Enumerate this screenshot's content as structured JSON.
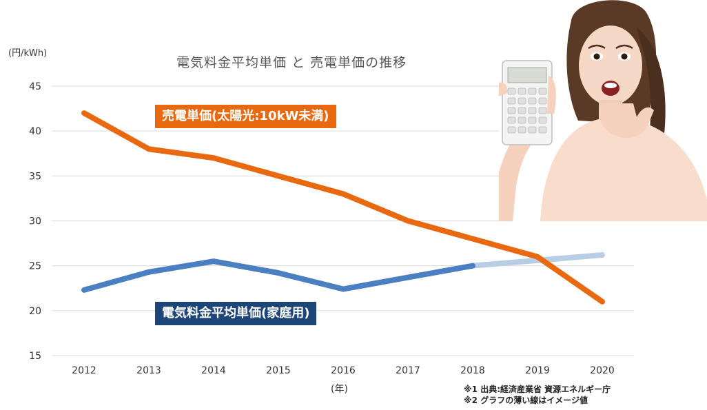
{
  "unit_label": "(円/kWh)",
  "year_unit_label": "(年)",
  "chart_data": {
    "type": "line",
    "title": "電気料金平均単価 と 売電単価の推移",
    "xlabel": "(年)",
    "ylabel": "(円/kWh)",
    "ylim": [
      15,
      45
    ],
    "yticks": [
      15,
      20,
      25,
      30,
      35,
      40,
      45
    ],
    "categories": [
      "2012",
      "2013",
      "2014",
      "2015",
      "2016",
      "2017",
      "2018",
      "2019",
      "2020"
    ],
    "grid": true,
    "series": [
      {
        "name": "売電単価(太陽光:10kW未満)",
        "color": "#e8690f",
        "values": [
          42,
          38,
          37,
          35,
          33,
          30,
          28,
          26,
          21
        ]
      },
      {
        "name": "電気料金平均単価(家庭用)",
        "color": "#4a7fc1",
        "values": [
          22.3,
          24.3,
          25.5,
          24.2,
          22.4,
          23.7,
          25.0,
          25.6,
          26.2
        ],
        "estimated_from_index": 6,
        "estimated_color": "#b9cde6"
      }
    ]
  },
  "notes": [
    "※1 出典:経済産業省 資源エネルギー庁",
    "※2 グラフの薄い線はイメージ値"
  ],
  "photo": {
    "icon": "surprised-woman-with-calculator-photo"
  }
}
